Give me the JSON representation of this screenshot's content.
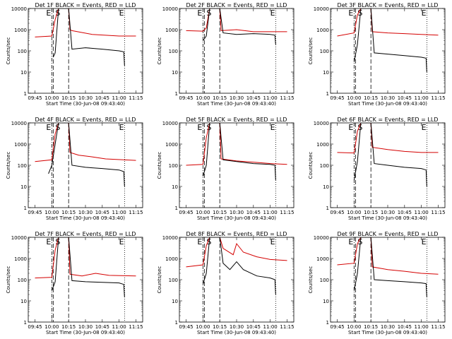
{
  "chart_data": {
    "type": "line",
    "scale_y": "log",
    "ylim": [
      1,
      10000
    ],
    "ytick_labels": [
      "1",
      "10",
      "100",
      "1000",
      "10000"
    ],
    "ylabel": "Counts/sec",
    "xlabel": "Start Time (30-Jun-08 09:43:40)",
    "series_colors": {
      "events": "#000000",
      "lld": "#d40000"
    },
    "vertical_markers": [
      {
        "label": "E",
        "time": "10:00",
        "style": "dash-dot"
      },
      {
        "label": "S",
        "time": "10:00",
        "style": "dashed"
      },
      {
        "label": "",
        "time": "10:15",
        "style": "dashed"
      },
      {
        "label": "E",
        "time": "11:05",
        "style": "dotted"
      }
    ],
    "panels": [
      {
        "title": "Det 1F BLACK = Events, RED = LLD",
        "xticks": [
          "09:45",
          "10:00",
          "10:15",
          "10:30",
          "10:45",
          "11:00",
          "11:15"
        ],
        "events": [
          [
            10.02,
            50
          ],
          [
            10.05,
            80
          ],
          [
            10.1,
            10000
          ],
          [
            10.25,
            10000
          ],
          [
            10.3,
            120
          ],
          [
            10.5,
            140
          ],
          [
            10.75,
            120
          ],
          [
            11.0,
            100
          ],
          [
            11.07,
            90
          ],
          [
            11.08,
            20
          ]
        ],
        "lld": [
          [
            9.75,
            450
          ],
          [
            10.0,
            500
          ],
          [
            10.05,
            3000
          ],
          [
            10.1,
            10000
          ],
          [
            10.25,
            10000
          ],
          [
            10.27,
            1000
          ],
          [
            10.3,
            900
          ],
          [
            10.6,
            600
          ],
          [
            11.0,
            500
          ],
          [
            11.25,
            500
          ]
        ]
      },
      {
        "title": "Det 2F BLACK = Events, RED = LLD",
        "xticks": [
          "09:45",
          "10:00",
          "10:15",
          "10:30",
          "10:45",
          "11:00",
          "11:15"
        ],
        "events": [
          [
            10.0,
            300
          ],
          [
            10.05,
            500
          ],
          [
            10.1,
            10000
          ],
          [
            10.25,
            10000
          ],
          [
            10.3,
            700
          ],
          [
            10.5,
            600
          ],
          [
            10.75,
            650
          ],
          [
            11.0,
            600
          ],
          [
            11.07,
            550
          ],
          [
            11.08,
            200
          ]
        ],
        "lld": [
          [
            9.75,
            900
          ],
          [
            10.0,
            850
          ],
          [
            10.05,
            1200
          ],
          [
            10.1,
            10000
          ],
          [
            10.25,
            10000
          ],
          [
            10.27,
            900
          ],
          [
            10.5,
            1000
          ],
          [
            10.75,
            800
          ],
          [
            11.0,
            800
          ],
          [
            11.25,
            800
          ]
        ]
      },
      {
        "title": "Det 3F BLACK = Events, RED = LLD",
        "xticks": [
          "09:45",
          "10:00",
          "10:15",
          "10:30",
          "10:45",
          "11:00",
          "11:15"
        ],
        "events": [
          [
            10.0,
            30
          ],
          [
            10.05,
            200
          ],
          [
            10.1,
            10000
          ],
          [
            10.25,
            10000
          ],
          [
            10.3,
            80
          ],
          [
            10.5,
            70
          ],
          [
            10.75,
            60
          ],
          [
            11.0,
            50
          ],
          [
            11.07,
            45
          ],
          [
            11.08,
            10
          ]
        ],
        "lld": [
          [
            9.75,
            500
          ],
          [
            10.0,
            700
          ],
          [
            10.05,
            5000
          ],
          [
            10.1,
            10000
          ],
          [
            10.25,
            10000
          ],
          [
            10.27,
            800
          ],
          [
            10.5,
            700
          ],
          [
            10.75,
            650
          ],
          [
            11.0,
            600
          ],
          [
            11.25,
            550
          ]
        ]
      },
      {
        "title": "Det 4F BLACK = Events, RED = LLD",
        "xticks": [
          "09:45",
          "10:00",
          "10:15",
          "10:30",
          "10:45",
          "11:00",
          "11:15"
        ],
        "events": [
          [
            9.95,
            40
          ],
          [
            10.0,
            100
          ],
          [
            10.05,
            1000
          ],
          [
            10.1,
            10000
          ],
          [
            10.25,
            10000
          ],
          [
            10.3,
            100
          ],
          [
            10.5,
            80
          ],
          [
            10.75,
            70
          ],
          [
            11.0,
            60
          ],
          [
            11.07,
            50
          ],
          [
            11.08,
            10
          ]
        ],
        "lld": [
          [
            9.75,
            150
          ],
          [
            10.0,
            180
          ],
          [
            10.05,
            3000
          ],
          [
            10.1,
            10000
          ],
          [
            10.25,
            10000
          ],
          [
            10.27,
            400
          ],
          [
            10.4,
            300
          ],
          [
            10.6,
            250
          ],
          [
            10.8,
            200
          ],
          [
            11.25,
            170
          ]
        ]
      },
      {
        "title": "Det 5F BLACK = Events, RED = LLD",
        "xticks": [
          "09:45",
          "10:00",
          "10:15",
          "10:30",
          "10:45",
          "11:00",
          "11:15"
        ],
        "events": [
          [
            10.0,
            30
          ],
          [
            10.05,
            100
          ],
          [
            10.1,
            10000
          ],
          [
            10.25,
            10000
          ],
          [
            10.3,
            180
          ],
          [
            10.5,
            150
          ],
          [
            10.75,
            120
          ],
          [
            11.0,
            110
          ],
          [
            11.07,
            100
          ],
          [
            11.08,
            20
          ]
        ],
        "lld": [
          [
            9.75,
            100
          ],
          [
            10.0,
            110
          ],
          [
            10.05,
            2000
          ],
          [
            10.1,
            10000
          ],
          [
            10.25,
            10000
          ],
          [
            10.27,
            200
          ],
          [
            10.5,
            160
          ],
          [
            10.75,
            140
          ],
          [
            11.0,
            120
          ],
          [
            11.25,
            110
          ]
        ]
      },
      {
        "title": "Det 6F BLACK = Events, RED = LLD",
        "xticks": [
          "09:45",
          "10:00",
          "10:15",
          "10:30",
          "10:45",
          "11:00",
          "11:15"
        ],
        "events": [
          [
            10.0,
            20
          ],
          [
            10.05,
            150
          ],
          [
            10.1,
            10000
          ],
          [
            10.25,
            10000
          ],
          [
            10.3,
            120
          ],
          [
            10.5,
            100
          ],
          [
            10.75,
            80
          ],
          [
            11.0,
            70
          ],
          [
            11.07,
            60
          ],
          [
            11.08,
            10
          ]
        ],
        "lld": [
          [
            9.75,
            400
          ],
          [
            10.0,
            380
          ],
          [
            10.05,
            4000
          ],
          [
            10.1,
            10000
          ],
          [
            10.25,
            10000
          ],
          [
            10.27,
            700
          ],
          [
            10.5,
            550
          ],
          [
            10.75,
            450
          ],
          [
            11.0,
            400
          ],
          [
            11.25,
            400
          ]
        ]
      },
      {
        "title": "Det 7F BLACK = Events, RED = LLD",
        "xticks": [
          "09:45",
          "10:00",
          "10:15",
          "10:30",
          "10:45",
          "11:00",
          "11:15"
        ],
        "events": [
          [
            10.0,
            30
          ],
          [
            10.05,
            80
          ],
          [
            10.1,
            10000
          ],
          [
            10.25,
            10000
          ],
          [
            10.3,
            90
          ],
          [
            10.5,
            80
          ],
          [
            10.75,
            75
          ],
          [
            11.0,
            70
          ],
          [
            11.07,
            60
          ],
          [
            11.08,
            15
          ]
        ],
        "lld": [
          [
            9.75,
            120
          ],
          [
            10.0,
            130
          ],
          [
            10.05,
            2500
          ],
          [
            10.1,
            10000
          ],
          [
            10.25,
            10000
          ],
          [
            10.27,
            180
          ],
          [
            10.45,
            150
          ],
          [
            10.65,
            200
          ],
          [
            10.85,
            160
          ],
          [
            11.25,
            150
          ]
        ]
      },
      {
        "title": "Det 8F BLACK = Events, RED = LLD",
        "xticks": [
          "09:45",
          "10:00",
          "10:15",
          "10:30",
          "10:45",
          "11:00",
          "11:15"
        ],
        "events": [
          [
            10.0,
            60
          ],
          [
            10.05,
            200
          ],
          [
            10.1,
            10000
          ],
          [
            10.25,
            10000
          ],
          [
            10.3,
            600
          ],
          [
            10.4,
            300
          ],
          [
            10.5,
            700
          ],
          [
            10.6,
            300
          ],
          [
            10.8,
            150
          ],
          [
            11.0,
            120
          ],
          [
            11.07,
            100
          ],
          [
            11.08,
            20
          ]
        ],
        "lld": [
          [
            9.75,
            400
          ],
          [
            10.0,
            500
          ],
          [
            10.05,
            4000
          ],
          [
            10.1,
            10000
          ],
          [
            10.25,
            10000
          ],
          [
            10.3,
            3000
          ],
          [
            10.45,
            1500
          ],
          [
            10.5,
            5000
          ],
          [
            10.6,
            2000
          ],
          [
            10.8,
            1200
          ],
          [
            11.0,
            900
          ],
          [
            11.25,
            800
          ]
        ]
      },
      {
        "title": "Det 9F BLACK = Events, RED = LLD",
        "xticks": [
          "09:45",
          "10:00",
          "10:15",
          "10:30",
          "10:45",
          "11:00",
          "11:15"
        ],
        "events": [
          [
            10.0,
            30
          ],
          [
            10.05,
            200
          ],
          [
            10.1,
            10000
          ],
          [
            10.25,
            10000
          ],
          [
            10.3,
            100
          ],
          [
            10.5,
            90
          ],
          [
            10.75,
            80
          ],
          [
            11.0,
            70
          ],
          [
            11.07,
            65
          ],
          [
            11.08,
            15
          ]
        ],
        "lld": [
          [
            9.75,
            500
          ],
          [
            10.0,
            600
          ],
          [
            10.05,
            5000
          ],
          [
            10.1,
            10000
          ],
          [
            10.25,
            10000
          ],
          [
            10.27,
            400
          ],
          [
            10.5,
            300
          ],
          [
            10.75,
            250
          ],
          [
            11.0,
            200
          ],
          [
            11.25,
            180
          ]
        ]
      }
    ]
  }
}
